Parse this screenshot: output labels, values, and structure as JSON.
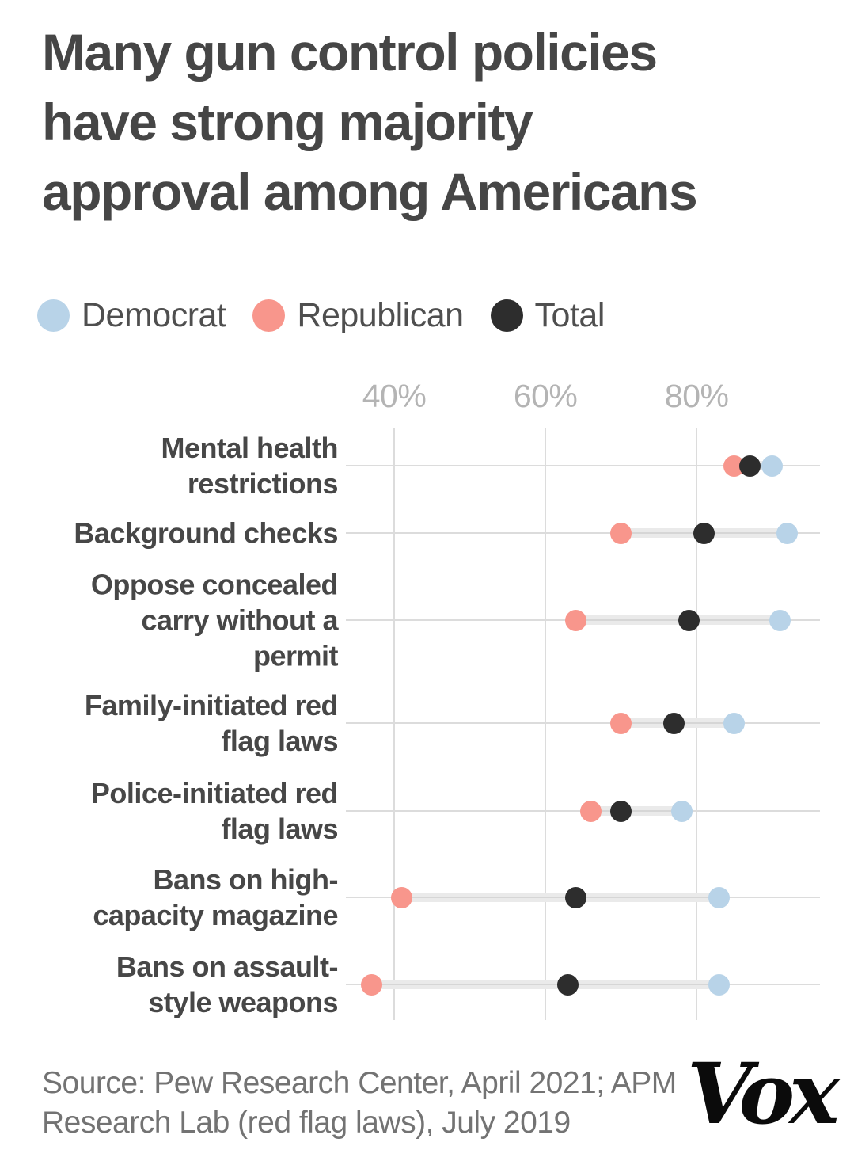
{
  "header": {
    "title": "Many gun control policies\nhave strong majority\napproval among Americans"
  },
  "chart_data": {
    "type": "scatter",
    "subtype": "dumbbell-dot-plot",
    "title": "Many gun control policies have strong majority approval among Americans",
    "categories": [
      "Mental health\nrestrictions",
      "Background checks",
      "Oppose concealed\ncarry without a\npermit",
      "Family-initiated red\nflag laws",
      "Police-initiated red\nflag laws",
      "Bans on high-\ncapacity magazine",
      "Bans on assault-\nstyle weapons"
    ],
    "series": [
      {
        "name": "Democrat",
        "color": "#b8d3e8",
        "values": [
          90,
          92,
          91,
          85,
          78,
          83,
          83
        ]
      },
      {
        "name": "Republican",
        "color": "#f8968c",
        "values": [
          85,
          70,
          64,
          70,
          66,
          41,
          37
        ]
      },
      {
        "name": "Total",
        "color": "#2d2d2d",
        "values": [
          87,
          81,
          79,
          77,
          70,
          64,
          63
        ]
      }
    ],
    "x_axis": {
      "unit": "%",
      "ticks": [
        40,
        60,
        80
      ],
      "tick_labels": [
        "40%",
        "60%",
        "80%"
      ],
      "range": [
        33.5,
        96.5
      ],
      "grid": true
    },
    "legend_position": "top-left",
    "connector_color": "#eaeaea",
    "gridline_color": "#dcdcdc"
  },
  "footer": {
    "source": "Source: Pew Research Center, April 2021; APM\nResearch Lab (red flag laws), July 2019",
    "logo_text": "Vox"
  }
}
